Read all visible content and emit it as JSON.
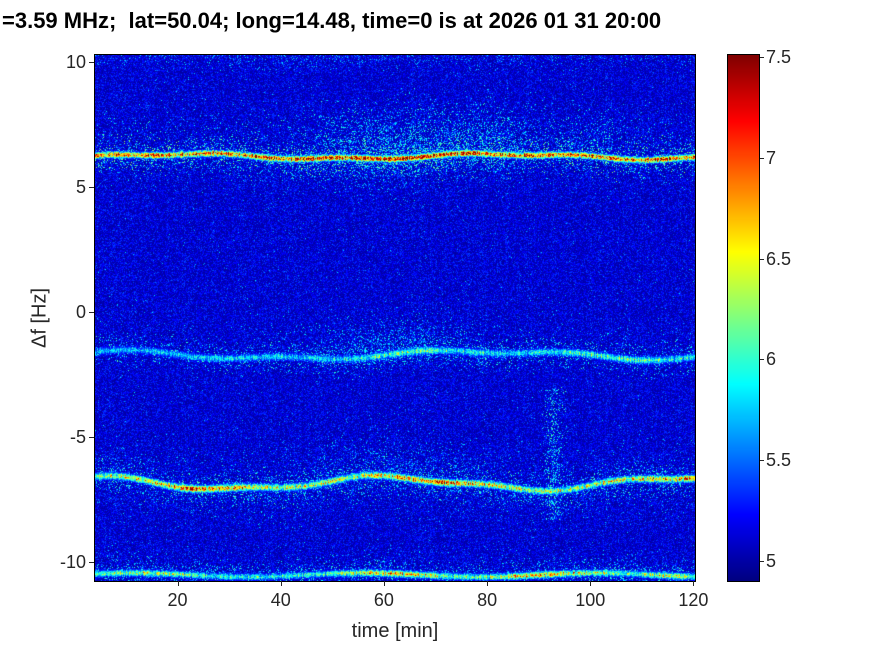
{
  "chart_data": {
    "type": "heatmap",
    "title": "=3.59 MHz;  lat=50.04; long=14.48, time=0 is at 2026 01 31 20:00",
    "xlabel": "time [min]",
    "ylabel": "Δf [Hz]",
    "colormap": "jet",
    "xlim": [
      4,
      120.3
    ],
    "ylim": [
      -10.76,
      10.28
    ],
    "clim": [
      4.9,
      7.51
    ],
    "x_ticks": [
      {
        "v": 20,
        "label": "20"
      },
      {
        "v": 40,
        "label": "40"
      },
      {
        "v": 60,
        "label": "60"
      },
      {
        "v": 80,
        "label": "80"
      },
      {
        "v": 100,
        "label": "100"
      },
      {
        "v": 120,
        "label": "120"
      }
    ],
    "y_ticks": [
      {
        "v": 10,
        "label": "10"
      },
      {
        "v": 5,
        "label": "5"
      },
      {
        "v": 0,
        "label": "0"
      },
      {
        "v": -5,
        "label": "-5"
      },
      {
        "v": -10,
        "label": "-10"
      }
    ],
    "colorbar_ticks": [
      {
        "v": 7.5,
        "label": "7.5"
      },
      {
        "v": 7,
        "label": "7"
      },
      {
        "v": 6.5,
        "label": "6.5"
      },
      {
        "v": 6,
        "label": "6"
      },
      {
        "v": 5.5,
        "label": "5.5"
      },
      {
        "v": 5,
        "label": "5"
      }
    ],
    "background_level": 5.1,
    "bands": [
      {
        "name": "doppler-line-plus-6.2Hz",
        "center": 6.22,
        "width": 0.12,
        "peak": 7.45,
        "drift": [
          {
            "amp": 0.1,
            "period": 62,
            "phase": 5
          },
          {
            "amp": 0.05,
            "period": 23,
            "phase": 0
          }
        ],
        "mod": {
          "base": 0.92,
          "bumps": [
            {
              "t": 64,
              "amp": 0.12,
              "sigma": 20
            }
          ]
        },
        "halos": [
          {
            "offset": 0,
            "width": 0.5,
            "density": 0.22,
            "peak": 6.05,
            "bumps": [
              {
                "t": 64,
                "amp": 0.15,
                "sigma": 18
              }
            ]
          },
          {
            "offset": 0.7,
            "width": 1.0,
            "density": 0.04,
            "peak": 5.85,
            "bumps": [
              {
                "t": 62,
                "amp": 0.3,
                "sigma": 14
              },
              {
                "t": 80,
                "amp": 0.18,
                "sigma": 8
              },
              {
                "t": 100,
                "amp": 0.1,
                "sigma": 10
              }
            ]
          },
          {
            "offset": -0.6,
            "width": 0.7,
            "density": 0.03,
            "peak": 5.7,
            "bumps": [
              {
                "t": 62,
                "amp": 0.1,
                "sigma": 18
              }
            ]
          }
        ]
      },
      {
        "name": "doppler-line-minus-1.7Hz",
        "center": -1.72,
        "width": 0.15,
        "peak": 6.5,
        "drift": [
          {
            "amp": 0.15,
            "period": 75,
            "phase": -15
          },
          {
            "amp": 0.08,
            "period": 28,
            "phase": 5
          }
        ],
        "mod": {
          "base": 0.55,
          "bumps": [
            {
              "t": 30,
              "amp": 0.1,
              "sigma": 12
            },
            {
              "t": 66,
              "amp": 0.28,
              "sigma": 14
            },
            {
              "t": 105,
              "amp": 0.28,
              "sigma": 14
            }
          ]
        },
        "halos": [
          {
            "offset": 0,
            "width": 0.45,
            "density": 0.16,
            "peak": 5.9,
            "bumps": [
              {
                "t": 66,
                "amp": 0.1,
                "sigma": 15
              }
            ]
          },
          {
            "offset": 0.5,
            "width": 0.8,
            "density": 0.03,
            "peak": 5.75,
            "bumps": [
              {
                "t": 60,
                "amp": 0.22,
                "sigma": 12
              }
            ]
          }
        ]
      },
      {
        "name": "doppler-line-minus-6.8Hz",
        "center": -6.85,
        "width": 0.14,
        "peak": 7.25,
        "drift": [
          {
            "amp": 0.25,
            "period": 58,
            "phase": -12
          },
          {
            "amp": 0.08,
            "period": 24,
            "phase": 3
          }
        ],
        "mod": {
          "base": 0.68,
          "bumps": [
            {
              "t": 25,
              "amp": 0.3,
              "sigma": 9
            },
            {
              "t": 70,
              "amp": 0.25,
              "sigma": 10
            },
            {
              "t": 118,
              "amp": 0.18,
              "sigma": 8
            }
          ]
        },
        "halos": [
          {
            "offset": 0,
            "width": 0.5,
            "density": 0.2,
            "peak": 5.95,
            "bumps": []
          },
          {
            "offset": 0.6,
            "width": 0.9,
            "density": 0.04,
            "peak": 5.7,
            "bumps": [
              {
                "t": 60,
                "amp": 0.1,
                "sigma": 20
              }
            ]
          },
          {
            "offset": -0.6,
            "width": 0.8,
            "density": 0.05,
            "peak": 5.7,
            "bumps": []
          }
        ]
      },
      {
        "name": "doppler-line-minus-10.5Hz",
        "center": -10.52,
        "width": 0.13,
        "peak": 7.15,
        "drift": [
          {
            "amp": 0.08,
            "period": 45,
            "phase": 0
          }
        ],
        "mod": {
          "base": 0.5,
          "bumps": [
            {
              "t": 15,
              "amp": 0.2,
              "sigma": 9
            },
            {
              "t": 62,
              "amp": 0.35,
              "sigma": 10
            },
            {
              "t": 92,
              "amp": 0.38,
              "sigma": 10
            },
            {
              "t": 115,
              "amp": 0.2,
              "sigma": 7
            }
          ]
        },
        "halos": [
          {
            "offset": 0,
            "width": 0.4,
            "density": 0.18,
            "peak": 5.9,
            "bumps": []
          },
          {
            "offset": 0.4,
            "width": 0.6,
            "density": 0.05,
            "peak": 5.7,
            "bumps": []
          }
        ]
      },
      {
        "name": "top-edge-scatter",
        "center": 10.55,
        "width": 0.01,
        "peak": 0,
        "drift": [
          {
            "amp": 0.1,
            "period": 50,
            "phase": 0
          }
        ],
        "mod": {
          "base": 0.5,
          "bumps": []
        },
        "halos": [
          {
            "offset": -0.25,
            "width": 0.45,
            "density": 0.1,
            "peak": 5.7,
            "bumps": [
              {
                "t": 55,
                "amp": 0.08,
                "sigma": 20
              }
            ]
          }
        ]
      }
    ],
    "streaks": [
      {
        "t": 93,
        "sigma": 1.5,
        "f_from": -8.3,
        "f_to": -3.0,
        "density": 0.3,
        "peak": 5.95
      }
    ]
  }
}
